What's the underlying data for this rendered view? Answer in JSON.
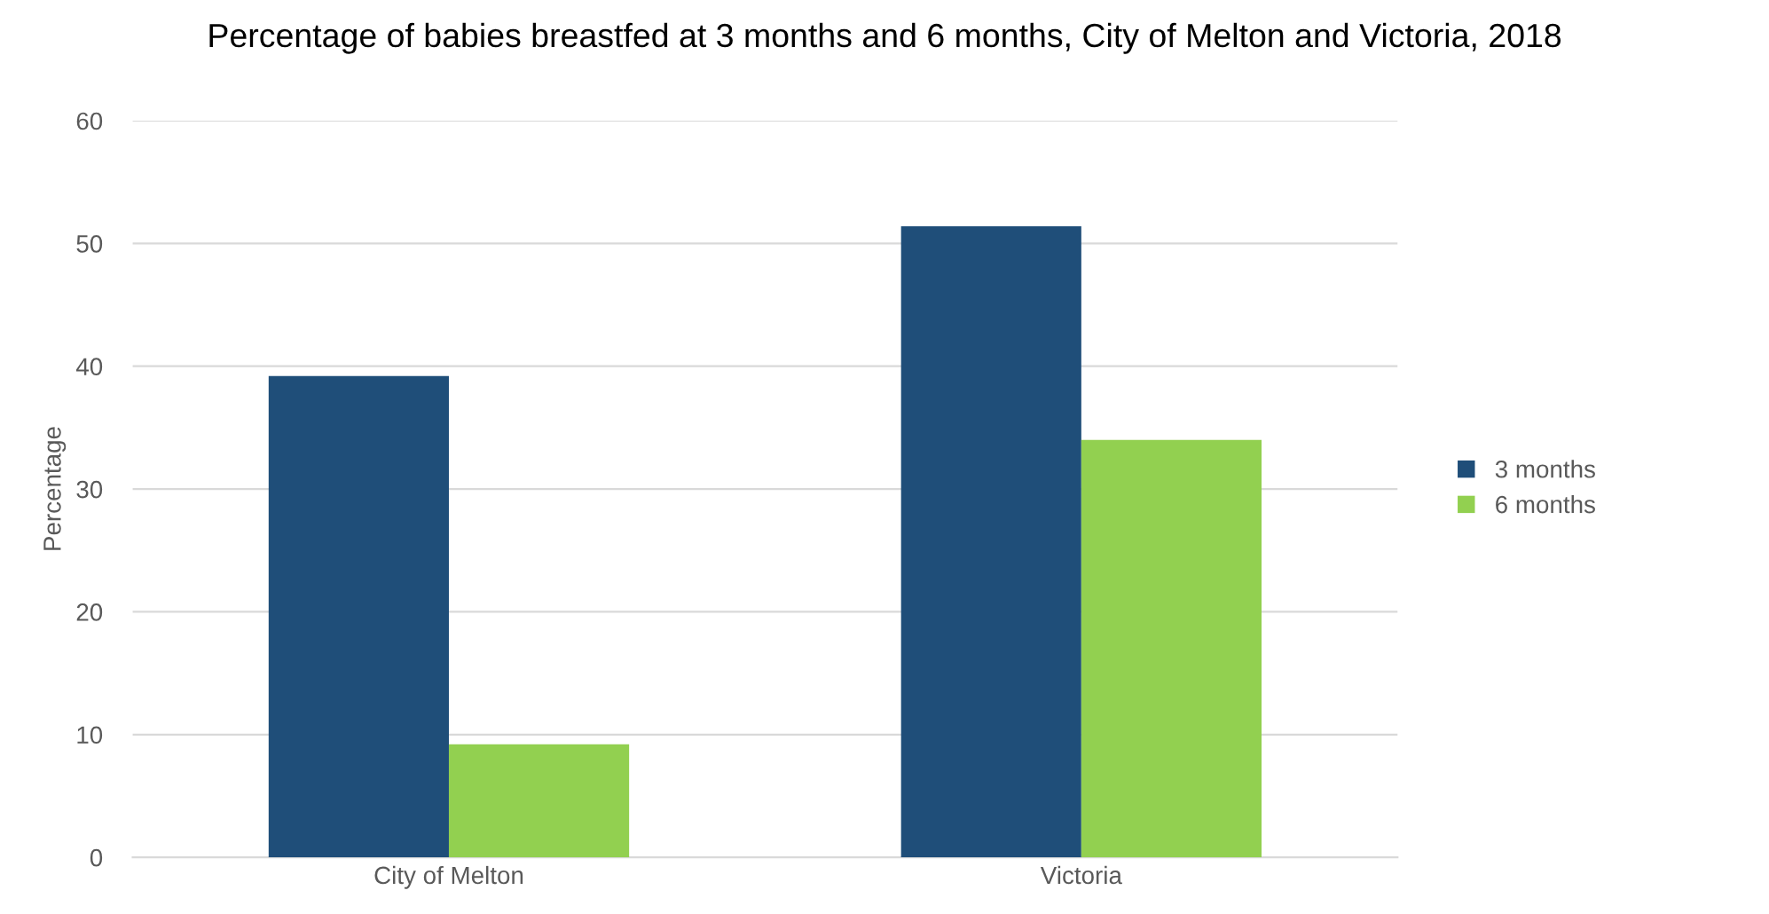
{
  "chart_data": {
    "type": "bar",
    "title": "Percentage of babies breastfed at 3 months and 6 months, City of Melton and Victoria, 2018",
    "ylabel": "Percentage",
    "categories": [
      "City of Melton",
      "Victoria"
    ],
    "series": [
      {
        "name": "3 months",
        "color": "#1f4e79",
        "values": [
          39.2,
          51.4
        ]
      },
      {
        "name": "6 months",
        "color": "#92d050",
        "values": [
          9.2,
          34.0
        ]
      }
    ],
    "ylim": [
      0,
      60
    ],
    "yticks": [
      0,
      10,
      20,
      30,
      40,
      50,
      60
    ],
    "grid": "y",
    "legend": "right"
  }
}
